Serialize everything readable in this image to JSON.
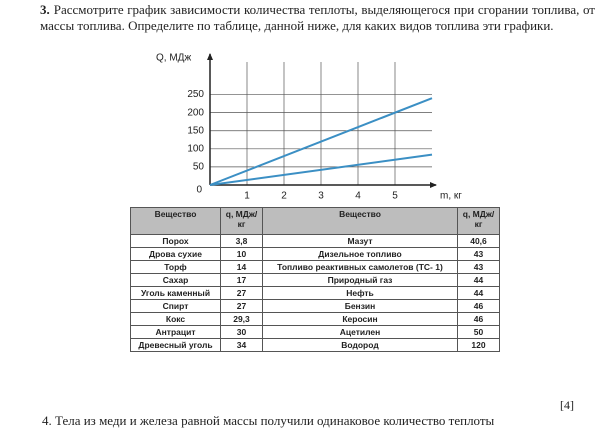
{
  "question": {
    "number": "3.",
    "text": "Рассмотрите график зависимости количества теплоты, выделяющегося при сгорании топлива, от массы топлива. Определите по таблице, данной ниже, для каких видов топлива эти графики."
  },
  "chart_data": {
    "type": "line",
    "ylabel": "Q, МДж",
    "xlabel": "m, кг",
    "origin_label": "0",
    "x": [
      0,
      6
    ],
    "series": [
      {
        "color": "#3b8fc4",
        "values": [
          0,
          240
        ]
      },
      {
        "color": "#3b8fc4",
        "values": [
          0,
          84
        ]
      }
    ],
    "xlim": [
      0,
      6
    ],
    "ylim": [
      0,
      340
    ],
    "xticks": [
      1,
      2,
      3,
      4,
      5
    ],
    "yticks": [
      50,
      100,
      150,
      200,
      250
    ],
    "grid": true
  },
  "table": {
    "header": [
      "Вещество",
      "q, МДж/кг",
      "Вещество",
      "q, МДж/кг"
    ],
    "rows": [
      [
        "Порох",
        "3,8",
        "Мазут",
        "40,6"
      ],
      [
        "Дрова сухие",
        "10",
        "Дизельное топливо",
        "43"
      ],
      [
        "Торф",
        "14",
        "Топливо реактивных самолетов (ТС- 1)",
        "43"
      ],
      [
        "Сахар",
        "17",
        "Природный газ",
        "44"
      ],
      [
        "Уголь каменный",
        "27",
        "Нефть",
        "44"
      ],
      [
        "Спирт",
        "27",
        "Бензин",
        "46"
      ],
      [
        "Кокс",
        "29,3",
        "Керосин",
        "46"
      ],
      [
        "Антрацит",
        "30",
        "Ацетилен",
        "50"
      ],
      [
        "Древесный уголь",
        "34",
        "Водород",
        "120"
      ]
    ]
  },
  "score": "[4]",
  "next_question": "4. Тела из меди и железа равной массы получили одинаковое количество теплоты"
}
